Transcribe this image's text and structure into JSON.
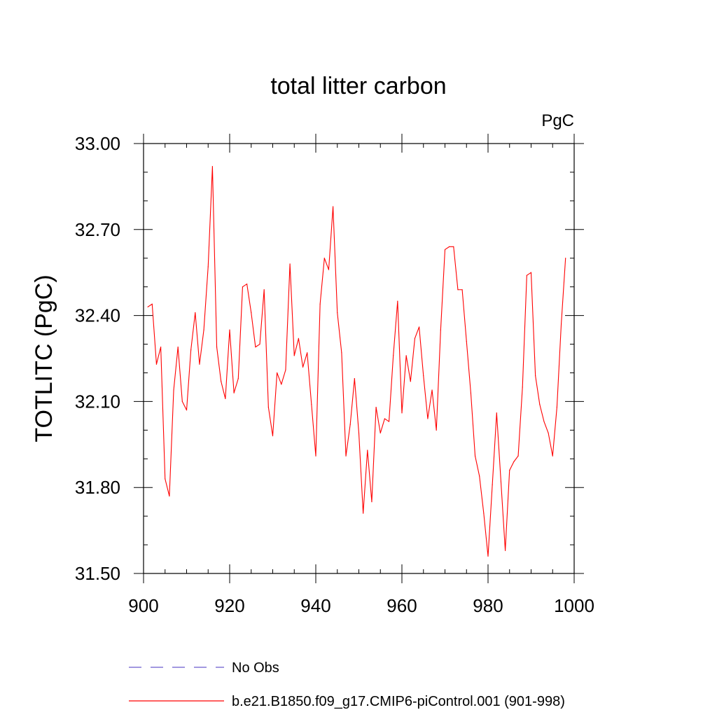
{
  "chart_data": {
    "type": "line",
    "title": "total litter carbon",
    "units_label": "PgC",
    "ylabel": "TOTLITC  (PgC)",
    "xlabel": "",
    "xlim": [
      900,
      1000
    ],
    "ylim": [
      31.5,
      33.0
    ],
    "x_ticks": [
      900,
      920,
      940,
      960,
      980,
      1000
    ],
    "x_tick_labels": [
      "900",
      "920",
      "940",
      "960",
      "980",
      "1000"
    ],
    "y_ticks": [
      31.5,
      31.8,
      32.1,
      32.4,
      32.7,
      33.0
    ],
    "y_tick_labels": [
      "31.50",
      "31.80",
      "32.10",
      "32.40",
      "32.70",
      "33.00"
    ],
    "x_minor_step": 5,
    "y_minor_step": 0.1,
    "grid": false,
    "legend_position": "bottom",
    "series": [
      {
        "name": "b.e21.B1850.f09_g17.CMIP6-piControl.001 (901-998)",
        "color": "#ff0000",
        "style": "solid",
        "x_start": 901,
        "x_step": 1,
        "values": [
          32.43,
          32.44,
          32.23,
          32.29,
          31.83,
          31.77,
          32.14,
          32.29,
          32.1,
          32.07,
          32.28,
          32.41,
          32.23,
          32.35,
          32.57,
          32.92,
          32.29,
          32.17,
          32.11,
          32.35,
          32.13,
          32.18,
          32.5,
          32.51,
          32.41,
          32.29,
          32.3,
          32.49,
          32.08,
          31.98,
          32.2,
          32.16,
          32.21,
          32.58,
          32.26,
          32.32,
          32.22,
          32.27,
          32.09,
          31.91,
          32.44,
          32.6,
          32.56,
          32.78,
          32.41,
          32.27,
          31.91,
          32.02,
          32.18,
          31.99,
          31.71,
          31.93,
          31.75,
          32.08,
          31.99,
          32.04,
          32.03,
          32.26,
          32.45,
          32.06,
          32.26,
          32.17,
          32.32,
          32.36,
          32.19,
          32.04,
          32.14,
          32.0,
          32.35,
          32.63,
          32.64,
          32.64,
          32.49,
          32.49,
          32.31,
          32.13,
          31.91,
          31.84,
          31.71,
          31.56,
          31.81,
          32.06,
          31.82,
          31.58,
          31.86,
          31.89,
          31.91,
          32.15,
          32.54,
          32.55,
          32.19,
          32.09,
          32.03,
          31.99,
          31.91,
          32.08,
          32.37,
          32.6
        ]
      }
    ],
    "legend": [
      {
        "label": "No Obs",
        "color": "#6a5acd",
        "style": "dashed"
      },
      {
        "label": "b.e21.B1850.f09_g17.CMIP6-piControl.001 (901-998)",
        "color": "#ff0000",
        "style": "solid"
      }
    ]
  }
}
